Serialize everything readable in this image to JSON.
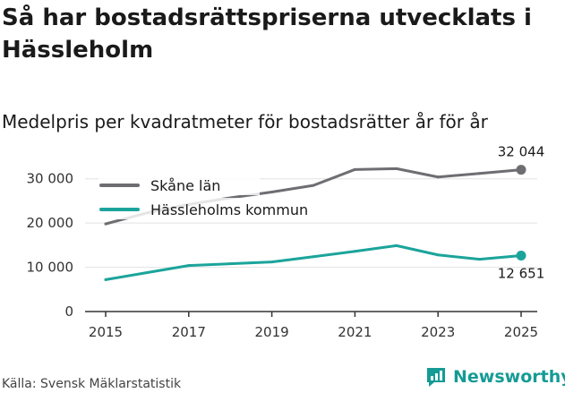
{
  "title": "Så har bostadsrättspriserna utvecklats i Hässleholm",
  "subtitle": "Medelpris per kvadratmeter för bostadsrätter år för år",
  "source": "Källa: Svensk Mäklarstatistik",
  "brand": "Newsworthy",
  "brand_color": "#159b95",
  "chart_data": {
    "type": "line",
    "title": "Medelpris per kvadratmeter för bostadsrätter år för år",
    "xlabel": "",
    "ylabel": "",
    "x": [
      2015,
      2016,
      2017,
      2018,
      2019,
      2020,
      2021,
      2022,
      2023,
      2024,
      2025
    ],
    "xticks": [
      "2015",
      "2017",
      "2019",
      "2021",
      "2023",
      "2025"
    ],
    "xlim": [
      2015,
      2025
    ],
    "yticks": [
      "0",
      "10 000",
      "20 000",
      "30 000"
    ],
    "ytick_values": [
      0,
      10000,
      20000,
      30000
    ],
    "ylim": [
      0,
      35000
    ],
    "legend_position": "top-left",
    "series": [
      {
        "name": "Skåne län",
        "color": "#6e6e72",
        "values": [
          19800,
          22300,
          24200,
          25700,
          27000,
          28500,
          32100,
          32300,
          30400,
          31200,
          32044
        ],
        "end_label": "32 044"
      },
      {
        "name": "Hässleholms kommun",
        "color": "#1ba49b",
        "values": [
          7200,
          8800,
          10400,
          10800,
          11200,
          12400,
          13600,
          14900,
          12800,
          11800,
          12651
        ],
        "end_label": "12 651"
      }
    ]
  }
}
